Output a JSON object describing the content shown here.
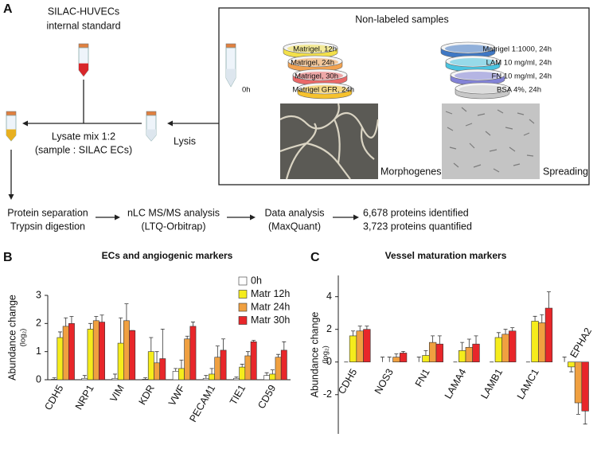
{
  "panel_labels": [
    "A",
    "B",
    "C"
  ],
  "workflow": {
    "standard": [
      "SILAC-HUVECs",
      "internal standard"
    ],
    "mix": [
      "Lysate mix 1:2",
      "(sample : SILAC ECs)"
    ],
    "lysis": "Lysis",
    "box_title": "Non-labeled samples",
    "control": "0h",
    "matrigel": [
      "Matrigel, 12h",
      "Matrigel, 24h",
      "Matrigel, 30h",
      "Matrigel GFR, 24h"
    ],
    "other": [
      "Matrigel 1:1000,  24h",
      "LAM 10 mg/ml,  24h",
      "FN 10 mg/ml,  24h",
      "BSA 4%, 24h"
    ],
    "images": [
      "Morphogenesis",
      "Spreading"
    ],
    "steps": [
      [
        "Protein separation",
        "Trypsin digestion"
      ],
      [
        "nLC MS/MS analysis",
        "(LTQ-Orbitrap)"
      ],
      [
        "Data analysis",
        "(MaxQuant)"
      ],
      [
        "6,678 proteins identified",
        "3,723 proteins quantified"
      ]
    ]
  },
  "chart_data": [
    {
      "type": "bar",
      "title": "ECs and angiogenic markers",
      "y_label": "Abundance change",
      "y_label_unit": "(log₂)",
      "categories": [
        "CDH5",
        "NRP1",
        "VIM",
        "KDR",
        "VWF",
        "PECAM1",
        "TIE1",
        "CD59"
      ],
      "series": [
        {
          "name": "0h",
          "color": "#ffffff",
          "values": [
            0.02,
            0.05,
            0.05,
            0.02,
            0.3,
            0.05,
            0.05,
            0.15
          ],
          "errors": [
            0.05,
            0.1,
            0.15,
            0.05,
            0.1,
            0.1,
            0.05,
            0.1
          ]
        },
        {
          "name": "Matr 12h",
          "color": "#f5ec1c",
          "values": [
            1.5,
            1.8,
            1.3,
            1.0,
            0.4,
            0.2,
            0.45,
            0.2
          ],
          "errors": [
            0.2,
            0.2,
            0.9,
            0.5,
            0.3,
            0.2,
            0.1,
            0.15
          ]
        },
        {
          "name": "Matr 24h",
          "color": "#f0a040",
          "values": [
            1.9,
            2.1,
            2.1,
            0.6,
            1.45,
            0.8,
            0.85,
            0.8
          ],
          "errors": [
            0.3,
            0.15,
            0.6,
            0.4,
            0.1,
            0.4,
            0.15,
            0.1
          ]
        },
        {
          "name": "Matr 30h",
          "color": "#e8262a",
          "values": [
            2.0,
            2.05,
            1.75,
            0.75,
            1.9,
            1.05,
            1.35,
            1.05
          ],
          "errors": [
            0.25,
            0.25,
            0.0,
            1.05,
            0.15,
            0.4,
            0.05,
            0.3
          ]
        }
      ],
      "ylim": [
        0,
        3
      ],
      "yticks": [
        0,
        1,
        2,
        3
      ],
      "legend": "top-right"
    },
    {
      "type": "bar",
      "title": "Vessel maturation markers",
      "y_label": "Abundance change",
      "y_label_unit": "(log₂)",
      "categories": [
        "CDH5",
        "NOS3",
        "FN1",
        "LAMA4",
        "LAMB1",
        "LAMC1",
        "EPHA2"
      ],
      "series": [
        {
          "color": "#ffffff",
          "values": [
            0,
            0,
            0,
            0,
            0,
            0,
            0
          ],
          "errors": [
            0,
            0.3,
            0.3,
            0,
            0,
            0,
            0.3
          ]
        },
        {
          "color": "#f5ec1c",
          "values": [
            1.6,
            0,
            0.4,
            0.7,
            1.5,
            2.5,
            -0.3
          ],
          "errors": [
            0.3,
            0.3,
            0.3,
            0.5,
            0.3,
            0.3,
            0.3
          ]
        },
        {
          "color": "#f0a040",
          "values": [
            1.9,
            0.3,
            1.2,
            0.9,
            1.7,
            2.4,
            -2.5
          ],
          "errors": [
            0.3,
            0.2,
            0.4,
            0.5,
            0.3,
            0.5,
            0.7
          ]
        },
        {
          "color": "#e8262a",
          "values": [
            2.0,
            0.55,
            1.1,
            1.1,
            1.9,
            3.3,
            -3.0
          ],
          "errors": [
            0.2,
            0.1,
            0.5,
            0.5,
            0.2,
            1.0,
            0.8
          ]
        }
      ],
      "ylim": [
        -4.4,
        5.3
      ],
      "yticks": [
        -2,
        0,
        2,
        4
      ]
    }
  ]
}
